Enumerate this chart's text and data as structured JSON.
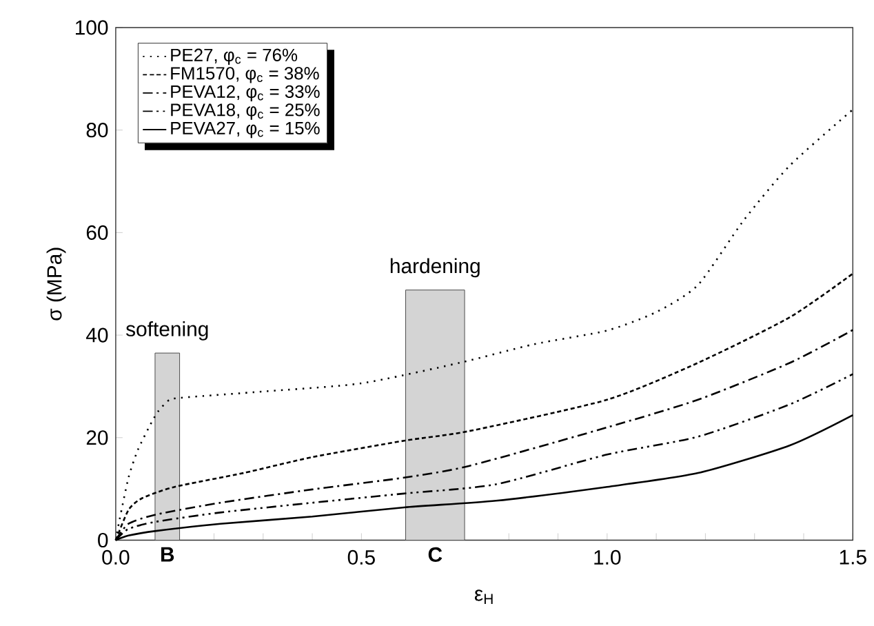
{
  "chart_data": {
    "type": "line",
    "xlabel": "ε$_{H}$",
    "ylabel": "σ (MPa)",
    "xlim": [
      0,
      1.5
    ],
    "ylim": [
      0,
      100
    ],
    "xticks": [
      {
        "value": 0,
        "label": "0.0"
      },
      {
        "value": 0.1,
        "label": null
      },
      {
        "value": 0.2,
        "label": null
      },
      {
        "value": 0.3,
        "label": null
      },
      {
        "value": 0.4,
        "label": null
      },
      {
        "value": 0.5,
        "label": "0.5"
      },
      {
        "value": 0.6,
        "label": null
      },
      {
        "value": 0.7,
        "label": null
      },
      {
        "value": 0.8,
        "label": null
      },
      {
        "value": 0.9,
        "label": null
      },
      {
        "value": 1.0,
        "label": "1.0"
      },
      {
        "value": 1.1,
        "label": null
      },
      {
        "value": 1.2,
        "label": null
      },
      {
        "value": 1.3,
        "label": null
      },
      {
        "value": 1.4,
        "label": null
      },
      {
        "value": 1.5,
        "label": "1.5"
      }
    ],
    "yticks": [
      0,
      20,
      40,
      60,
      80,
      100
    ],
    "grid": false,
    "legend": "top left",
    "marker": "none",
    "series": [
      {
        "name": "PE27, φ$_{c}$ = 76%",
        "color": "#000000",
        "line_style": "dotted",
        "x": [
          0,
          0.008,
          0.026,
          0.045,
          0.073,
          0.087,
          0.11,
          0.148,
          0.3,
          0.5,
          0.7,
          0.85,
          1.0,
          1.1,
          1.185,
          1.278,
          1.372,
          1.5
        ],
        "values": [
          0,
          4.1,
          12.2,
          17.6,
          23,
          25.2,
          27.4,
          27.9,
          29.0,
          30.6,
          34.6,
          38.2,
          40.9,
          44.5,
          49.8,
          62.4,
          73.1,
          84
        ]
      },
      {
        "name": "FM1570, φ$_{c}$ = 38%",
        "color": "#000000",
        "line_style": "dashed",
        "x": [
          0,
          0.026,
          0.054,
          0.12,
          0.26,
          0.4,
          0.587,
          0.72,
          1.0,
          1.185,
          1.372,
          1.5
        ],
        "values": [
          0,
          5.9,
          8.2,
          10.4,
          13.1,
          16.2,
          19.4,
          21.3,
          27.4,
          34.6,
          43.5,
          52
        ]
      },
      {
        "name": "PEVA12, φ$_{c}$ = 33%",
        "color": "#000000",
        "line_style": "dashdot",
        "x": [
          0,
          0.026,
          0.082,
          0.213,
          0.4,
          0.587,
          0.72,
          1.0,
          1.185,
          1.372,
          1.5
        ],
        "values": [
          0,
          3.2,
          5.0,
          7.3,
          9.9,
          12.2,
          14.5,
          22.0,
          27.4,
          34.6,
          41
        ]
      },
      {
        "name": "PEVA18, φ$_{c}$ = 25%",
        "color": "#000000",
        "line_style": "dashdotdot",
        "x": [
          0,
          0.026,
          0.082,
          0.213,
          0.4,
          0.587,
          0.774,
          1.0,
          1.185,
          1.372,
          1.5
        ],
        "values": [
          0,
          2.2,
          3.6,
          5.4,
          7.3,
          9.1,
          10.9,
          16.7,
          20.2,
          26.5,
          32.4
        ]
      },
      {
        "name": "PEVA27, φ$_{c}$ = 15%",
        "color": "#000000",
        "line_style": "solid",
        "x": [
          0,
          0.026,
          0.082,
          0.213,
          0.4,
          0.587,
          0.774,
          1.0,
          1.185,
          1.372,
          1.5
        ],
        "values": [
          0,
          0.9,
          1.8,
          3.2,
          4.6,
          6.4,
          7.7,
          10.4,
          13.1,
          18.5,
          24.4
        ]
      }
    ],
    "bands": [
      {
        "axis": "x",
        "from": 0.08,
        "to": 0.13,
        "label": "B",
        "color": "#d4d4d4"
      },
      {
        "axis": "x",
        "from": 0.59,
        "to": 0.71,
        "label": "C",
        "color": "#d4d4d4"
      }
    ],
    "annotations": [
      {
        "text": "softening",
        "x": 0.105,
        "y": 36.5
      },
      {
        "text": "hardening",
        "x": 0.65,
        "y": 48.8
      }
    ]
  }
}
